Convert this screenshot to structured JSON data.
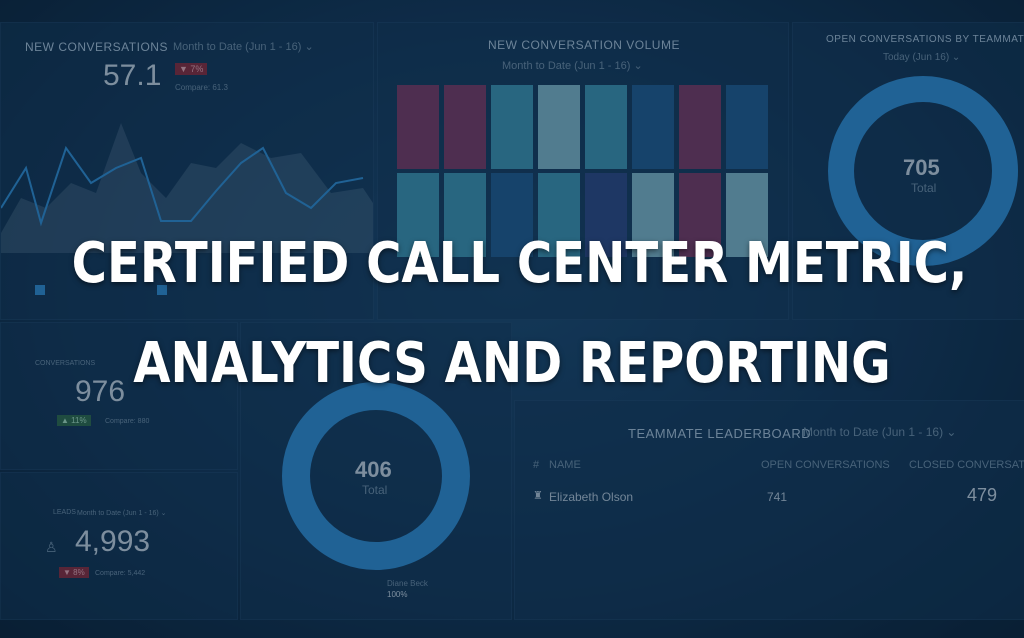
{
  "headline": {
    "line1": "CERTIFIED CALL CENTER METRIC,",
    "line2": "ANALYTICS AND REPORTING"
  },
  "new_conversations": {
    "title": "NEW CONVERSATIONS",
    "period": "Month to Date (Jun 1 - 16) ⌄",
    "value": "57.1",
    "change": "▼ 7%",
    "compare": "Compare: 61.3"
  },
  "volume": {
    "title": "NEW CONVERSATION VOLUME",
    "period": "Month to Date (Jun 1 - 16) ⌄",
    "tiles_top": [
      "#7a3a66",
      "#7a3a66",
      "#3c95b4",
      "#7fb9cc",
      "#3c95b4",
      "#1f5c92",
      "#7a3a66",
      "#1f5c92"
    ],
    "tiles_bottom": [
      "#3c95b4",
      "#3c95b4",
      "#1f5c92",
      "#3c95b4",
      "#2c4a86",
      "#7fb9cc",
      "#7a3a66",
      "#7fb9cc"
    ]
  },
  "open_by_teammate": {
    "title": "OPEN CONVERSATIONS BY TEAMMATE",
    "period": "Today (Jun 16) ⌄",
    "value": "705",
    "label": "Total"
  },
  "conversations_small": {
    "title": "CONVERSATIONS",
    "value": "976",
    "change": "▲ 11%",
    "compare": "Compare: 880"
  },
  "leads": {
    "title": "LEADS",
    "period": "Month to Date (Jun 1 - 16) ⌄",
    "value": "4,993",
    "change": "▼ 8%",
    "compare": "Compare: 5,442"
  },
  "center_donut": {
    "value": "406",
    "label": "Total",
    "person": "Diane Beck",
    "percent": "100%"
  },
  "leaderboard": {
    "title": "TEAMMATE LEADERBOARD",
    "period": "Month to Date (Jun 1 - 16) ⌄",
    "col_hash": "#",
    "col_name": "NAME",
    "col_open": "OPEN CONVERSATIONS",
    "col_closed": "CLOSED CONVERSATIONS",
    "rows": [
      {
        "name": "Elizabeth Olson",
        "open": "741",
        "closed": "479"
      }
    ]
  },
  "colors": {
    "accent_blue": "#2f8fd6",
    "tile_magenta": "#7a3a66",
    "tile_teal": "#3c95b4"
  }
}
